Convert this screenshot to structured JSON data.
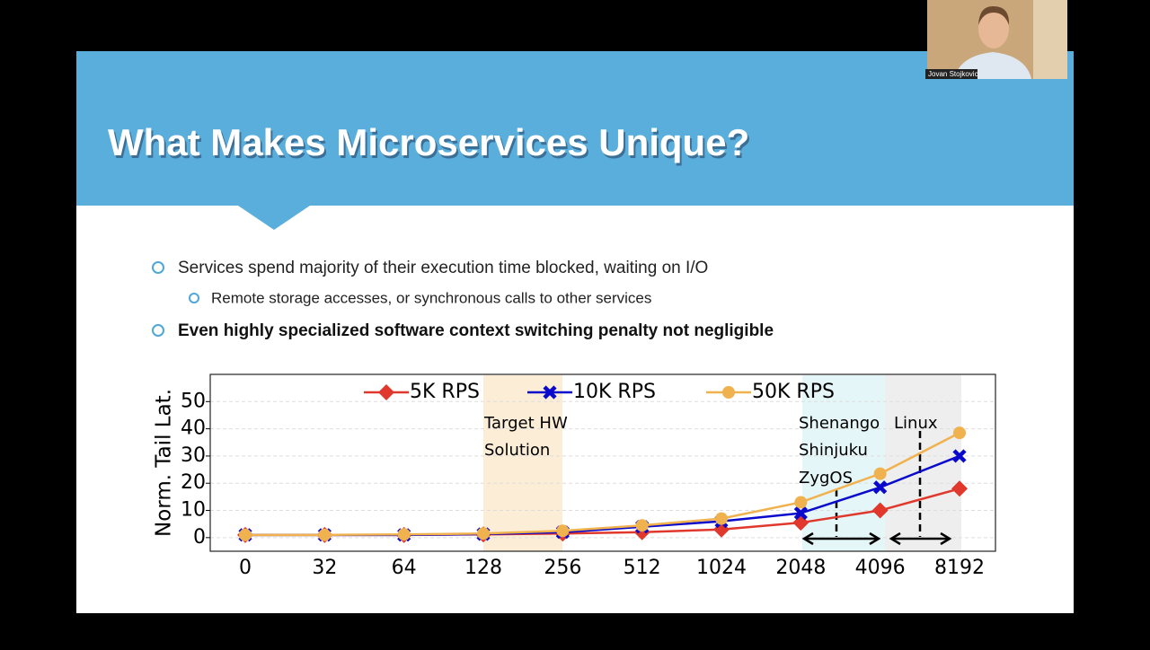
{
  "slide": {
    "title": "What Makes Microservices Unique?",
    "bullets": [
      {
        "text": "Services spend majority of their execution time blocked, waiting on I/O",
        "sub": [
          "Remote storage accesses, or synchronous calls to other services"
        ]
      },
      {
        "text": "Even highly specialized software context switching penalty not negligible"
      }
    ]
  },
  "webcam": {
    "name": "Jovan Stojkovic"
  },
  "chart_data": {
    "type": "line",
    "y_label": "Norm. Tail Lat.",
    "categories": [
      "0",
      "32",
      "64",
      "128",
      "256",
      "512",
      "1024",
      "2048",
      "4096",
      "8192"
    ],
    "series": [
      {
        "name": "5K RPS",
        "color": "#e0382c",
        "marker": "diamond",
        "values": [
          1,
          1,
          1,
          1.2,
          1.5,
          2,
          3,
          5.5,
          10,
          18
        ]
      },
      {
        "name": "10K RPS",
        "color": "#0a0acc",
        "marker": "x",
        "values": [
          1,
          1,
          1,
          1.3,
          2,
          4,
          6,
          9,
          18.5,
          30
        ]
      },
      {
        "name": "50K RPS",
        "color": "#f0b24e",
        "marker": "circle",
        "values": [
          1,
          1,
          1.2,
          1.5,
          2.5,
          4.5,
          7,
          13,
          23.5,
          38.5
        ]
      }
    ],
    "ylim": [
      -5,
      60
    ],
    "yticks": [
      0,
      10,
      20,
      30,
      40,
      50
    ],
    "grid": true,
    "annotations": [
      "Target HW",
      "Solution",
      "Shenango",
      "Shinjuku",
      "ZygOS",
      "Linux"
    ]
  }
}
